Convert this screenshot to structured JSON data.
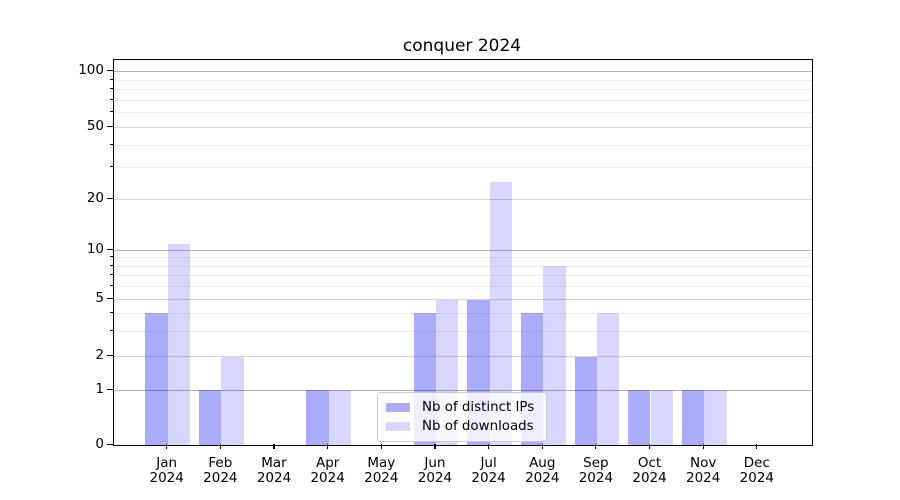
{
  "title": "conquer 2024",
  "chart_data": {
    "type": "bar",
    "title": "conquer 2024",
    "categories": [
      "Jan 2024",
      "Feb 2024",
      "Mar 2024",
      "Apr 2024",
      "May 2024",
      "Jun 2024",
      "Jul 2024",
      "Aug 2024",
      "Sep 2024",
      "Oct 2024",
      "Nov 2024",
      "Dec 2024"
    ],
    "x_tick_months": [
      "Jan",
      "Feb",
      "Mar",
      "Apr",
      "May",
      "Jun",
      "Jul",
      "Aug",
      "Sep",
      "Oct",
      "Nov",
      "Dec"
    ],
    "x_tick_year": "2024",
    "series": [
      {
        "name": "Nb of distinct IPs",
        "color": "rgba(8,8,242,0.34)",
        "values": [
          4,
          1,
          0,
          1,
          0,
          4,
          5,
          4,
          2,
          1,
          1,
          0
        ]
      },
      {
        "name": "Nb of downloads",
        "color": "rgba(8,8,242,0.16)",
        "values": [
          11,
          2,
          0,
          1,
          0,
          5,
          25,
          8,
          4,
          1,
          1,
          0
        ]
      }
    ],
    "yscale": "log-like with zero baseline",
    "ylim": [
      0,
      100
    ],
    "yticks": [
      0,
      1,
      2,
      5,
      10,
      20,
      50,
      100
    ],
    "minor_yticks": [
      3,
      4,
      6,
      7,
      8,
      9,
      30,
      40,
      60,
      70,
      80,
      90
    ],
    "grid": "horizontal major and minor gridlines",
    "legend_position": "lower center",
    "xlabel": "",
    "ylabel": ""
  }
}
